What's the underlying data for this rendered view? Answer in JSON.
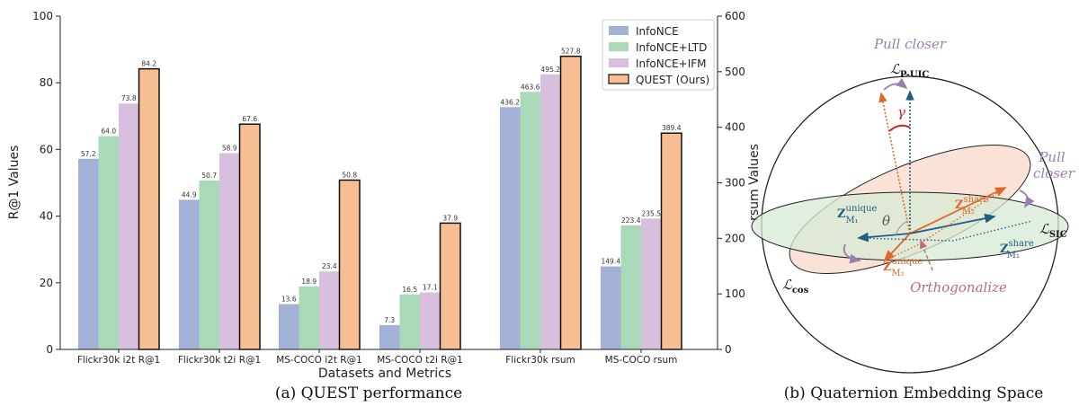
{
  "chart_data": [
    {
      "type": "bar",
      "caption": "(a) QUEST performance",
      "xlabel": "Datasets and Metrics",
      "ylabel": "R@1 Values",
      "ylabel_right": "rsum Values",
      "ylim": [
        0,
        100
      ],
      "ylim_right": [
        0,
        600
      ],
      "yticks": [
        0,
        20,
        40,
        60,
        80,
        100
      ],
      "yticks_right": [
        0,
        100,
        200,
        300,
        400,
        500,
        600
      ],
      "legend_position": "top-right",
      "categories": [
        "Flickr30k i2t R@1",
        "Flickr30k t2i R@1",
        "MS-COCO i2t R@1",
        "MS-COCO t2i R@1",
        "Flickr30k rsum",
        "MS-COCO rsum"
      ],
      "category_axis": [
        "left",
        "left",
        "left",
        "left",
        "right",
        "right"
      ],
      "series": [
        {
          "name": "InfoNCE",
          "color": "#a3b1d6",
          "values": [
            57.2,
            44.9,
            13.6,
            7.3,
            436.2,
            149.4
          ],
          "labels": [
            "57.2",
            "44.9",
            "13.6",
            "7.3",
            "436.2",
            "149.4"
          ]
        },
        {
          "name": "InfoNCE+LTD",
          "color": "#a9d9b6",
          "values": [
            64.0,
            50.7,
            18.9,
            16.5,
            463.6,
            223.4
          ],
          "labels": [
            "64.0",
            "50.7",
            "18.9",
            "16.5",
            "463.6",
            "223.4"
          ]
        },
        {
          "name": "InfoNCE+IFM",
          "color": "#d8bfdd",
          "values": [
            73.8,
            58.9,
            23.4,
            17.1,
            495.2,
            235.5
          ],
          "labels": [
            "73.8",
            "58.9",
            "23.4",
            "17.1",
            "495.2",
            "235.5"
          ]
        },
        {
          "name": "QUEST (Ours)",
          "color": "#f6be92",
          "values": [
            84.2,
            67.6,
            50.8,
            37.9,
            527.8,
            389.4
          ],
          "labels": [
            "84.2",
            "67.6",
            "50.8",
            "37.9",
            "527.8",
            "389.4"
          ],
          "outlined": true
        }
      ]
    }
  ],
  "diagram": {
    "caption": "(b) Quaternion Embedding Space",
    "labels": {
      "pull_closer_top": "Pull closer",
      "pull_closer_right_1": "Pull",
      "pull_closer_right_2": "closer",
      "orthogonalize": "Orthogonalize",
      "gamma": "γ",
      "theta": "θ",
      "loss_puic_L": "ℒ",
      "loss_puic_sub": "P-UIC",
      "loss_sic_L": "ℒ",
      "loss_sic_sub": "SIC",
      "loss_cos_L": "ℒ",
      "loss_cos_sub": "cos",
      "z_share_m2": "Z",
      "z_share_m2_sup": "share",
      "z_share_m2_sub": "M₂",
      "z_unique_m1": "Z",
      "z_unique_m1_sup": "unique",
      "z_unique_m1_sub": "M₁",
      "z_unique_m2": "Z",
      "z_unique_m2_sup": "unique",
      "z_unique_m2_sub": "M₂",
      "z_share_m1": "Z",
      "z_share_m1_sup": "share",
      "z_share_m1_sub": "M₁"
    },
    "colors": {
      "orange": "#e0662a",
      "blue": "#1f5f85",
      "purple": "#9b7fb0",
      "pink": "#c06a7a"
    }
  }
}
